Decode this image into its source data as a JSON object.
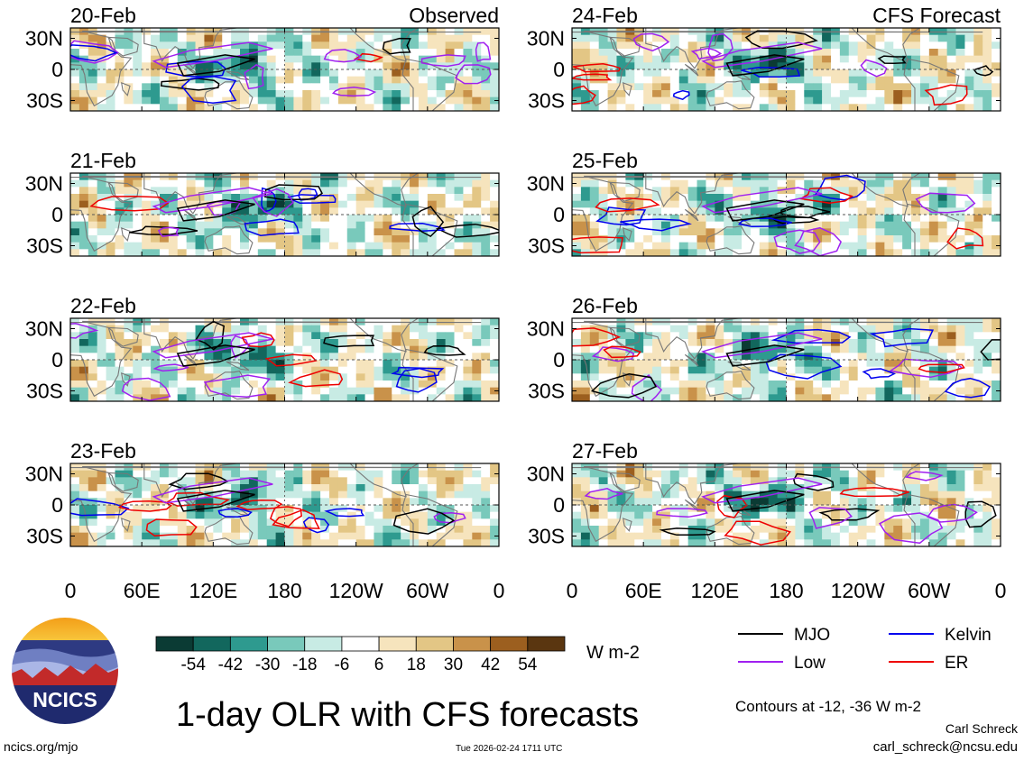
{
  "chart_data": {
    "type": "heatmap",
    "title": "1-day OLR with CFS forecasts",
    "variable": "OLR anomaly",
    "units": "W m-2",
    "colorbar": {
      "ticks": [
        -54,
        -42,
        -30,
        -18,
        -6,
        6,
        18,
        30,
        42,
        54
      ],
      "colors": [
        "#0b3b34",
        "#12675d",
        "#2e9a8f",
        "#79c9bb",
        "#c8ebe4",
        "#ffffff",
        "#f6e4bd",
        "#e3c685",
        "#c9924a",
        "#9c5f1f",
        "#5a3610"
      ]
    },
    "contours": {
      "note": "Contours at -12, -36 W m-2",
      "legend": [
        {
          "name": "MJO",
          "color": "#000000"
        },
        {
          "name": "Kelvin",
          "color": "#0000ee"
        },
        {
          "name": "Low",
          "color": "#a020f0"
        },
        {
          "name": "ER",
          "color": "#ee0000"
        }
      ]
    },
    "lat_ticks": [
      "30N",
      "0",
      "30S"
    ],
    "lat_values": [
      30,
      0,
      -30
    ],
    "lon_ticks": [
      "0",
      "60E",
      "120E",
      "180",
      "120W",
      "60W",
      "0"
    ],
    "lon_values": [
      0,
      60,
      120,
      180,
      240,
      300,
      360
    ],
    "panels": [
      {
        "date": "20-Feb",
        "tag": "Observed",
        "kind": "observed"
      },
      {
        "date": "21-Feb",
        "tag": "",
        "kind": "observed"
      },
      {
        "date": "22-Feb",
        "tag": "",
        "kind": "observed"
      },
      {
        "date": "23-Feb",
        "tag": "",
        "kind": "observed"
      },
      {
        "date": "24-Feb",
        "tag": "CFS Forecast",
        "kind": "forecast"
      },
      {
        "date": "25-Feb",
        "tag": "",
        "kind": "forecast"
      },
      {
        "date": "26-Feb",
        "tag": "",
        "kind": "forecast"
      },
      {
        "date": "27-Feb",
        "tag": "",
        "kind": "forecast"
      }
    ]
  },
  "logo_text": "NCICS",
  "footer": {
    "site": "ncics.org/mjo",
    "timestamp": "Tue 2026-02-24 1711 UTC",
    "author": "Carl Schreck",
    "email": "carl_schreck@ncsu.edu"
  }
}
